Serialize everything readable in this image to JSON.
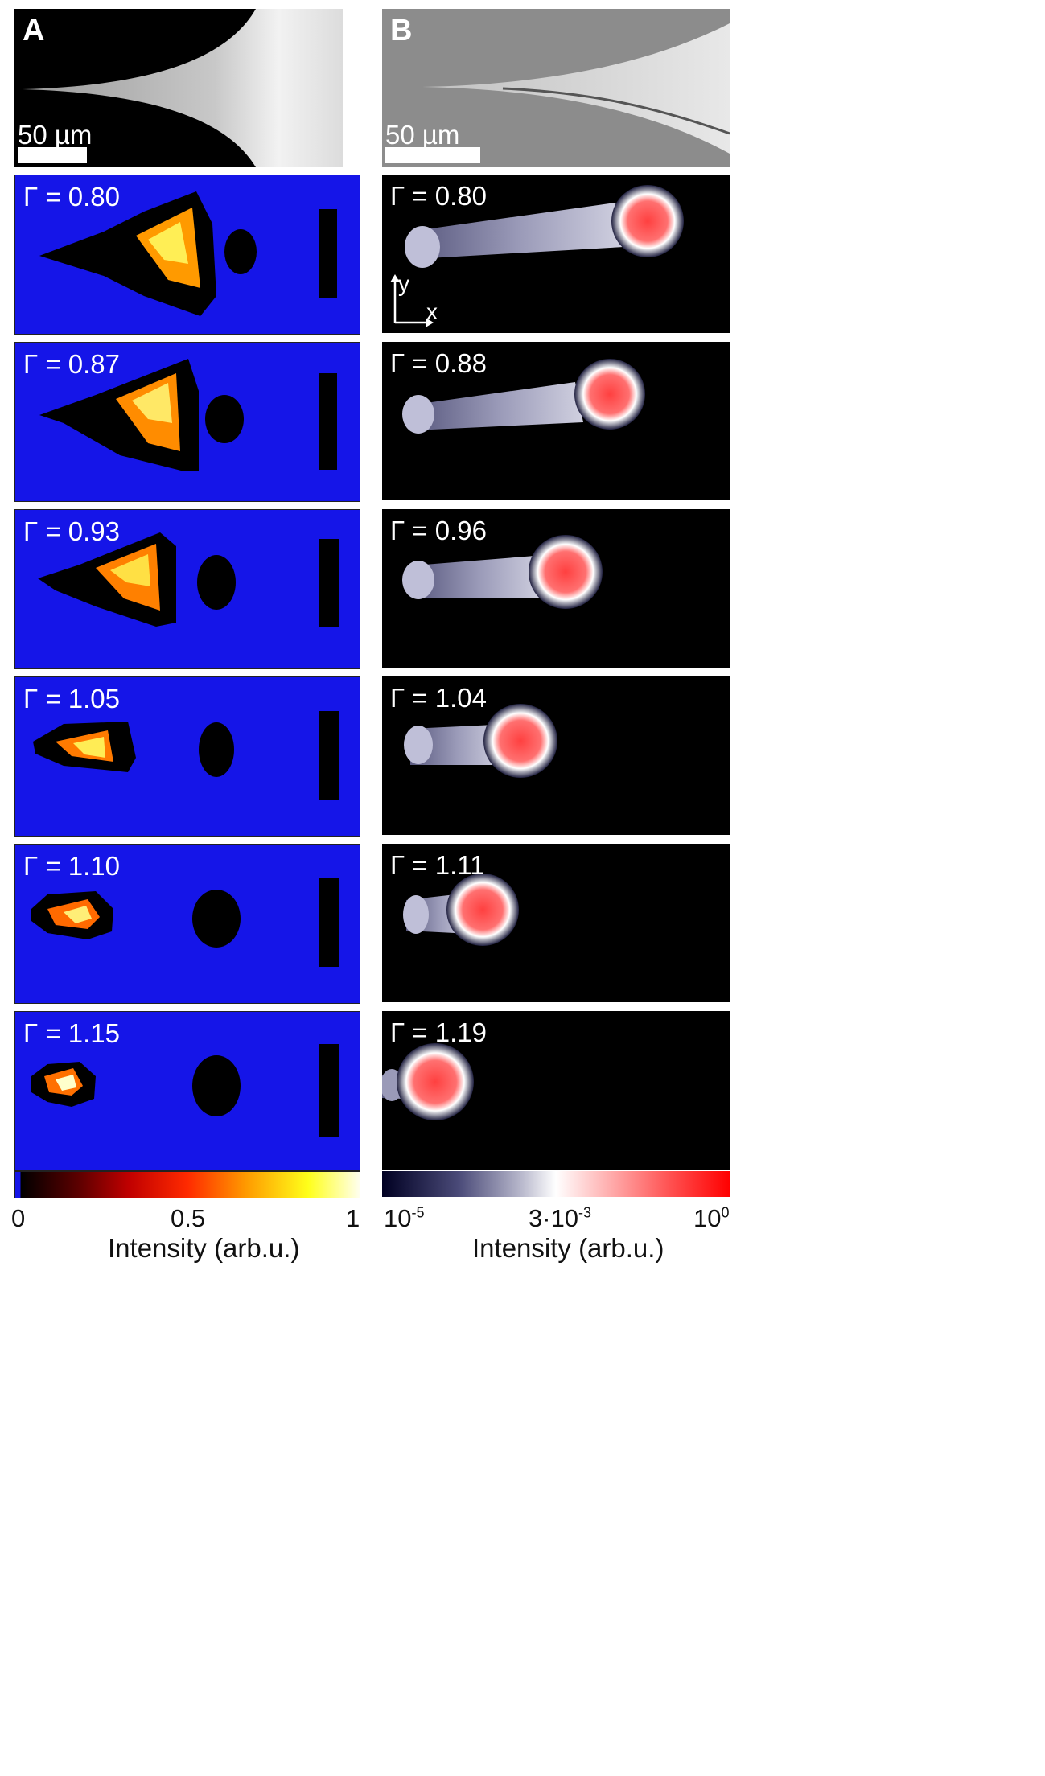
{
  "panels": {
    "A": {
      "label": "A",
      "scalebar": "50 µm"
    },
    "B": {
      "label": "B",
      "scalebar": "50 µm"
    }
  },
  "left_gammas": [
    "Γ = 0.80",
    "Γ = 0.87",
    "Γ = 0.93",
    "Γ = 1.05",
    "Γ = 1.10",
    "Γ = 1.15"
  ],
  "right_gammas": [
    "Γ = 0.80",
    "Γ = 0.88",
    "Γ = 0.96",
    "Γ = 1.04",
    "Γ = 1.11",
    "Γ = 1.19"
  ],
  "axes_icon": {
    "y": "y",
    "x": "x"
  },
  "colorbar_left": {
    "ticks": [
      "0",
      "0.5",
      "1"
    ],
    "label": "Intensity (arb.u.)",
    "colors": [
      "#000000",
      "#5a0000",
      "#c00000",
      "#ff2a00",
      "#ff9a00",
      "#ffff1a",
      "#ffffee"
    ]
  },
  "colorbar_right": {
    "tick_min": "10",
    "tick_min_exp": "-5",
    "tick_mid": "3·10",
    "tick_mid_exp": "-3",
    "tick_max": "10",
    "tick_max_exp": "0",
    "label": "Intensity (arb.u.)",
    "colors": [
      "#000022",
      "#4a4a78",
      "#b8b8cc",
      "#ffffff",
      "#ffb0b0",
      "#ff5050",
      "#ff0000"
    ]
  },
  "colors": {
    "left_background": "#1515e8",
    "right_background": "#000000"
  }
}
